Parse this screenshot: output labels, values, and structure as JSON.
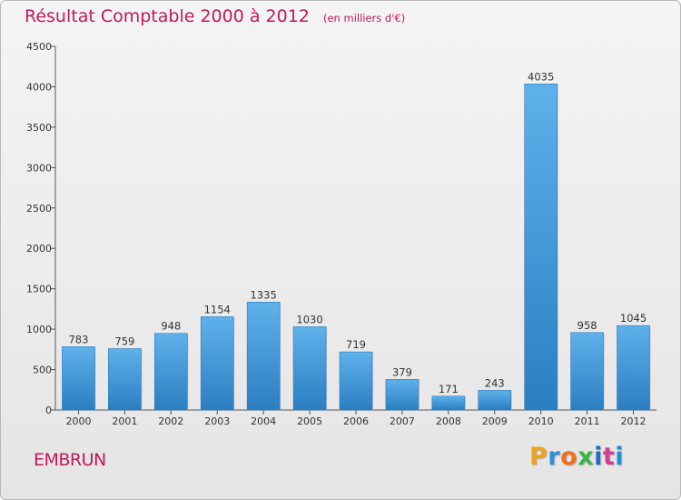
{
  "header": {
    "title": "Résultat Comptable 2000 à 2012",
    "subtitle": "(en milliers d'€)"
  },
  "commune": "EMBRUN",
  "logo": {
    "letters": [
      "P",
      "r",
      "o",
      "x",
      "i",
      "t",
      "i"
    ],
    "colors": [
      "#f0a21b",
      "#2f8fd6",
      "#f06f1f",
      "#3bb54a",
      "#1d6fc1",
      "#d33f8f",
      "#1e8fd4"
    ]
  },
  "chart_data": {
    "type": "bar",
    "title": "Résultat Comptable 2000 à 2012",
    "subtitle": "(en milliers d'€)",
    "categories": [
      "2000",
      "2001",
      "2002",
      "2003",
      "2004",
      "2005",
      "2006",
      "2007",
      "2008",
      "2009",
      "2010",
      "2011",
      "2012"
    ],
    "values": [
      783,
      759,
      948,
      1154,
      1335,
      1030,
      719,
      379,
      171,
      243,
      4035,
      958,
      1045
    ],
    "ylim": [
      0,
      4500
    ],
    "yticks": [
      0,
      500,
      1000,
      1500,
      2000,
      2500,
      3000,
      3500,
      4000,
      4500
    ],
    "grid": false,
    "bar_color": "#3a92d8"
  }
}
